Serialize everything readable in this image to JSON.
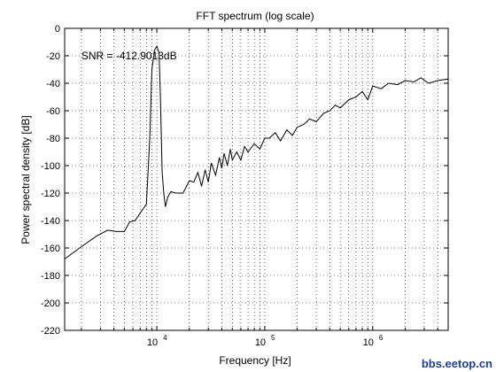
{
  "chart_data": {
    "type": "line",
    "title": "FFT spectrum (log scale)",
    "xlabel": "Frequency [Hz]",
    "ylabel": "Power spectral density [dB]",
    "xscale": "log",
    "xlim": [
      1400,
      5000000
    ],
    "ylim": [
      -220,
      0
    ],
    "yticks": [
      0,
      -20,
      -40,
      -60,
      -80,
      -100,
      -120,
      -140,
      -160,
      -180,
      -200,
      -220
    ],
    "ytick_labels": [
      "0",
      "-20",
      "-40",
      "-60",
      "-80",
      "-100",
      "-120",
      "-140",
      "-160",
      "-180",
      "-200",
      "-220"
    ],
    "xticks": [
      10000,
      100000,
      1000000
    ],
    "xtick_labels": [
      {
        "base": "10",
        "exp": "4"
      },
      {
        "base": "10",
        "exp": "5"
      },
      {
        "base": "10",
        "exp": "6"
      }
    ],
    "grid": true,
    "annotation": {
      "text": "SNR = -412.9013dB",
      "x": 2000,
      "y": -20
    },
    "line_color": "#000000",
    "series": [
      {
        "x": [
          1400,
          2000,
          2800,
          3500,
          4200,
          5000,
          5600,
          6300,
          7100,
          8000,
          8600,
          9000,
          9500,
          10000,
          10500,
          10800,
          11200,
          11600,
          12000,
          12600,
          13500,
          15000,
          17500,
          20000,
          22000,
          24000,
          26000,
          28000,
          30000,
          32000,
          35000,
          38000,
          40000,
          42000,
          45000,
          48000,
          50000,
          55000,
          60000,
          65000,
          70000,
          80000,
          90000,
          100000,
          110000,
          125000,
          140000,
          160000,
          180000,
          200000,
          230000,
          260000,
          300000,
          350000,
          400000,
          450000,
          500000,
          600000,
          700000,
          800000,
          900000,
          1000000,
          1200000,
          1400000,
          1700000,
          2000000,
          2400000,
          2800000,
          3300000,
          4000000,
          5000000
        ],
        "y": [
          -168,
          -159,
          -151,
          -147,
          -148,
          -148,
          -141,
          -140,
          -134,
          -128,
          -80,
          -30,
          -16,
          -13,
          -18,
          -50,
          -105,
          -120,
          -130,
          -123,
          -119,
          -120,
          -120,
          -111,
          -112,
          -105,
          -115,
          -103,
          -112,
          -98,
          -107,
          -94,
          -102,
          -91,
          -100,
          -88,
          -96,
          -90,
          -96,
          -86,
          -90,
          -84,
          -88,
          -80,
          -80,
          -76,
          -82,
          -74,
          -78,
          -72,
          -70,
          -66,
          -68,
          -62,
          -60,
          -56,
          -58,
          -52,
          -50,
          -46,
          -52,
          -42,
          -44,
          -40,
          -41,
          -38,
          -39,
          -36,
          -40,
          -38,
          -37
        ]
      }
    ]
  },
  "watermark": "bbs.eetop.cn"
}
